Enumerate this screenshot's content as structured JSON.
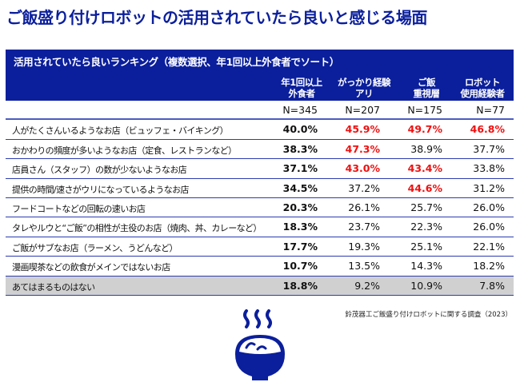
{
  "title": "ご飯盛り付けロボットの活用されていたら良いと感じる場面",
  "table": {
    "caption": "活用されていたら良いランキング（複数選択、年1回以上外食者でソート）",
    "columns": [
      {
        "line1": "年1回以上",
        "line2": "外食者",
        "n": "N=345"
      },
      {
        "line1": "がっかり経験",
        "line2": "アリ",
        "n": "N=207"
      },
      {
        "line1": "ご飯",
        "line2": "重視層",
        "n": "N=175"
      },
      {
        "line1": "ロボット",
        "line2": "使用経験者",
        "n": "N=77"
      }
    ],
    "rows": [
      {
        "label": "人がたくさんいるようなお店（ビュッフェ・バイキング）",
        "values": [
          "40.0%",
          "45.9%",
          "49.7%",
          "46.8%"
        ],
        "highlight": [
          false,
          true,
          true,
          true
        ]
      },
      {
        "label": "おかわりの頻度が多いようなお店（定食、レストランなど）",
        "values": [
          "38.3%",
          "47.3%",
          "38.9%",
          "37.7%"
        ],
        "highlight": [
          false,
          true,
          false,
          false
        ]
      },
      {
        "label": "店員さん（スタッフ）の数が少ないようなお店",
        "values": [
          "37.1%",
          "43.0%",
          "43.4%",
          "33.8%"
        ],
        "highlight": [
          false,
          true,
          true,
          false
        ]
      },
      {
        "label": "提供の時間/速さがウリになっているようなお店",
        "values": [
          "34.5%",
          "37.2%",
          "44.6%",
          "31.2%"
        ],
        "highlight": [
          false,
          false,
          true,
          false
        ]
      },
      {
        "label": "フードコートなどの回転の速いお店",
        "values": [
          "20.3%",
          "26.1%",
          "25.7%",
          "26.0%"
        ],
        "highlight": [
          false,
          false,
          false,
          false
        ]
      },
      {
        "label": "タレやルウと“ご飯”の相性が主役のお店（焼肉、丼、カレーなど）",
        "values": [
          "18.3%",
          "23.7%",
          "22.3%",
          "26.0%"
        ],
        "highlight": [
          false,
          false,
          false,
          false
        ]
      },
      {
        "label": "ご飯がサブなお店（ラーメン、うどんなど）",
        "values": [
          "17.7%",
          "19.3%",
          "25.1%",
          "22.1%"
        ],
        "highlight": [
          false,
          false,
          false,
          false
        ]
      },
      {
        "label": "漫画喫茶などの飲食がメインではないお店",
        "values": [
          "10.7%",
          "13.5%",
          "14.3%",
          "18.2%"
        ],
        "highlight": [
          false,
          false,
          false,
          false
        ]
      },
      {
        "label": "あてはまるものはない",
        "values": [
          "18.8%",
          "9.2%",
          "10.9%",
          "7.8%"
        ],
        "highlight": [
          false,
          false,
          false,
          false
        ],
        "gray": true
      }
    ]
  },
  "source": "鈴茂器工ご飯盛り付けロボットに関する調査（2023）",
  "icon": "rice-bowl-icon",
  "colors": {
    "brand": "#0b1f9c",
    "highlight": "#f01010",
    "gray_row": "#d0d0d0"
  }
}
